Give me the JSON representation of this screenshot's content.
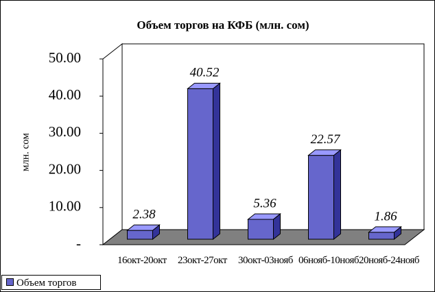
{
  "chart_data": {
    "type": "bar3d",
    "title": "Объем торгов на КФБ (млн. сом)",
    "y_label": "млн. сом",
    "categories": [
      "16окт-20окт",
      "23окт-27окт",
      "30окт-03нояб",
      "06нояб-10нояб",
      "20нояб-24нояб"
    ],
    "series": [
      {
        "name": "Объем торгов",
        "color": "#6666cc",
        "values": [
          2.38,
          40.52,
          5.36,
          22.57,
          1.86
        ]
      }
    ],
    "ylim": [
      0,
      50
    ],
    "yticks": [
      {
        "value": 0,
        "label": "-"
      },
      {
        "value": 10,
        "label": "10.00"
      },
      {
        "value": 20,
        "label": "20.00"
      },
      {
        "value": 30,
        "label": "30.00"
      },
      {
        "value": 40,
        "label": "40.00"
      },
      {
        "value": 50,
        "label": "50.00"
      }
    ]
  }
}
